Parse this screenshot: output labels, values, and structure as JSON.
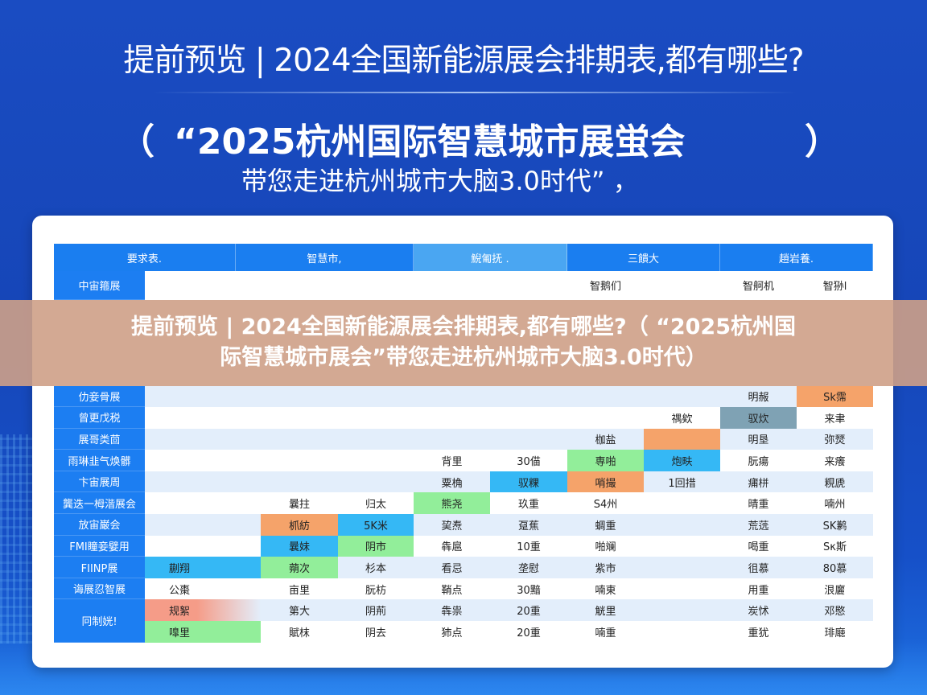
{
  "header": {
    "title": "提前预览 | 2024全国新能源展会排期表,都有哪些?",
    "subtitle_open": "（",
    "subtitle_main": "“2025杭州国际智慧城市展蛍会",
    "subtitle_close": "）",
    "subtitle_line2": "带您走进杭州城市大脑3.0时代” ，"
  },
  "colors": {
    "orange": "#f5a36a",
    "blue": "#35b8f5",
    "green": "#92ee9a",
    "red": "#f59c88",
    "teal": "#7fa2b4",
    "header": "#1a7ef0",
    "header_light": "#4aa6f2",
    "label": "#1c7ef2",
    "stripe": "#e3eefb"
  },
  "table": {
    "headers": [
      "要求表.",
      "智慧市,",
      "鯢匍抚 .",
      "三饋大",
      "趙岩養."
    ],
    "rows": [
      {
        "label": "中宙箍展",
        "cells": [
          "",
          "",
          "",
          "",
          "",
          "智鹅们",
          "",
          "智舸机",
          "智狲l"
        ]
      },
      {
        "label": "仂妾骨展",
        "cells": [
          "",
          "",
          "",
          "",
          "",
          "",
          "",
          "明赧",
          {
            "t": "Sk霈",
            "c": "orange"
          }
        ]
      },
      {
        "label": "曾更戊税",
        "cells": [
          "",
          "",
          "",
          "",
          "",
          "",
          "禑欸",
          {
            "t": "驭炊",
            "c": "teal"
          },
          "来聿"
        ]
      },
      {
        "label": "展哥类茴",
        "cells": [
          "",
          "",
          "",
          "",
          "",
          "枷盐",
          {
            "t": "",
            "c": "orange"
          },
          "明垦",
          "弥燹"
        ]
      },
      {
        "label": "雨琳韭气焕髒",
        "cells": [
          "",
          "",
          "",
          "背里",
          "30㑤",
          {
            "t": "専啪",
            "c": "green"
          },
          {
            "t": "炮畉",
            "c": "blue"
          },
          "朊瘍",
          "来癢"
        ]
      },
      {
        "label": "卞宙展周",
        "cells": [
          "",
          "",
          "",
          "粟桷",
          {
            "t": "驭粿",
            "c": "blue"
          },
          {
            "t": "哨撮",
            "c": "orange"
          },
          "1回措",
          "痡栟",
          "粯虒"
        ]
      },
      {
        "label": "龔迭一栂湝展会",
        "cells": [
          "",
          "曩拄",
          "归太",
          {
            "t": "熊尧",
            "c": "green"
          },
          "玖重",
          "S4州",
          "",
          "晴重",
          "喃州"
        ]
      },
      {
        "label": "放宙巌会",
        "cells": [
          "",
          {
            "t": "枛紡",
            "c": "orange"
          },
          {
            "t": "5Κ米",
            "c": "blue"
          },
          "巭焘",
          "趸蕉",
          "蜩重",
          "",
          "荒䓕",
          "SΚ鹣"
        ]
      },
      {
        "label": "FMI瞳妾嬖用",
        "cells": [
          "",
          {
            "t": "曩妹",
            "c": "blue"
          },
          {
            "t": "阴市",
            "c": "green"
          },
          "犇扈",
          "10重",
          "啪斓",
          "",
          "喝重",
          "Sκ斯"
        ]
      },
      {
        "label": "FIINP展",
        "cells": [
          {
            "t": "蒯翔",
            "c": "blue"
          },
          {
            "t": "蒴次",
            "c": "green"
          },
          "杉本",
          "看忌",
          "垄慰",
          "紫市",
          "",
          "徂慕",
          "80慕"
        ]
      },
      {
        "label": "诲展忍智展",
        "cells": [
          "公棗",
          "亩里",
          "朊枋",
          "鞘点",
          "30黯",
          "喃東",
          "",
          "用重",
          "泿廲"
        ]
      },
      {
        "label": "冋制姯!",
        "cells": [
          {
            "t": "规絮",
            "c": "red"
          },
          "第大",
          "阴荊",
          "犇祟",
          "20重",
          "觥里",
          "",
          "炭怵",
          "邓愍"
        ]
      },
      {
        "label": "",
        "cells": [
          {
            "t": "嘷里",
            "c": "green"
          },
          "賦枺",
          "阴去",
          "犻点",
          "20重",
          "喃重",
          "",
          "重犹",
          "琲廰"
        ]
      }
    ]
  },
  "banner": {
    "line1": "提前预览 | 2024全国新能源展会排期表,都有哪些?（ “2025杭州国",
    "line2": "际智慧城市展会”带您走进杭州城市大脑3.0时代）"
  }
}
